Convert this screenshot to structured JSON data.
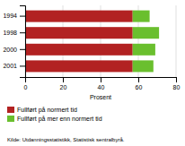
{
  "chart_data": {
    "type": "bar",
    "orientation": "horizontal",
    "stacked": true,
    "categories": [
      "1994",
      "1998",
      "2000",
      "2001"
    ],
    "series": [
      {
        "name": "Fullført på normert tid",
        "color": "#b22222",
        "values": [
          57,
          57,
          57,
          57
        ]
      },
      {
        "name": "Fullført på mer enn normert tid",
        "color": "#6abf2e",
        "values": [
          9,
          14,
          12,
          11
        ]
      }
    ],
    "xlabel": "Prosent",
    "xlim": [
      0,
      80
    ],
    "xticks": [
      0,
      20,
      40,
      60,
      80
    ],
    "grid": true,
    "legend": "bottom",
    "annotations": [
      "Kilde: Utdanningsstatistikk, Statistisk sentralbyrå."
    ]
  }
}
